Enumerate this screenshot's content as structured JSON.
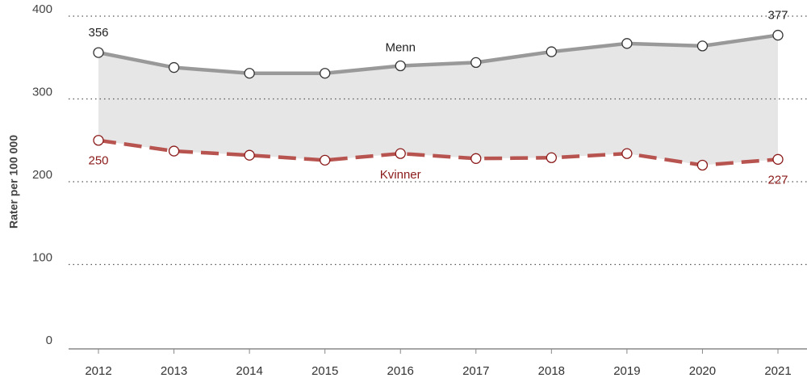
{
  "chart_data": {
    "type": "line",
    "y_label": "Rater per 100 000",
    "categories": [
      "2012",
      "2013",
      "2014",
      "2015",
      "2016",
      "2017",
      "2018",
      "2019",
      "2020",
      "2021"
    ],
    "series": [
      {
        "name": "Menn",
        "color": "#999999",
        "label_color": "#222222",
        "dash": false,
        "values": [
          356,
          338,
          331,
          331,
          340,
          344,
          357,
          367,
          364,
          377
        ]
      },
      {
        "name": "Kvinner",
        "color": "#b85450",
        "label_color": "#8b1a1a",
        "dash": true,
        "values": [
          250,
          237,
          232,
          226,
          234,
          228,
          229,
          234,
          220,
          227
        ]
      }
    ],
    "band_color": "#e6e6e6",
    "ylim": [
      0,
      400
    ],
    "yticks": [
      0,
      100,
      200,
      300,
      400
    ],
    "grid": true
  }
}
